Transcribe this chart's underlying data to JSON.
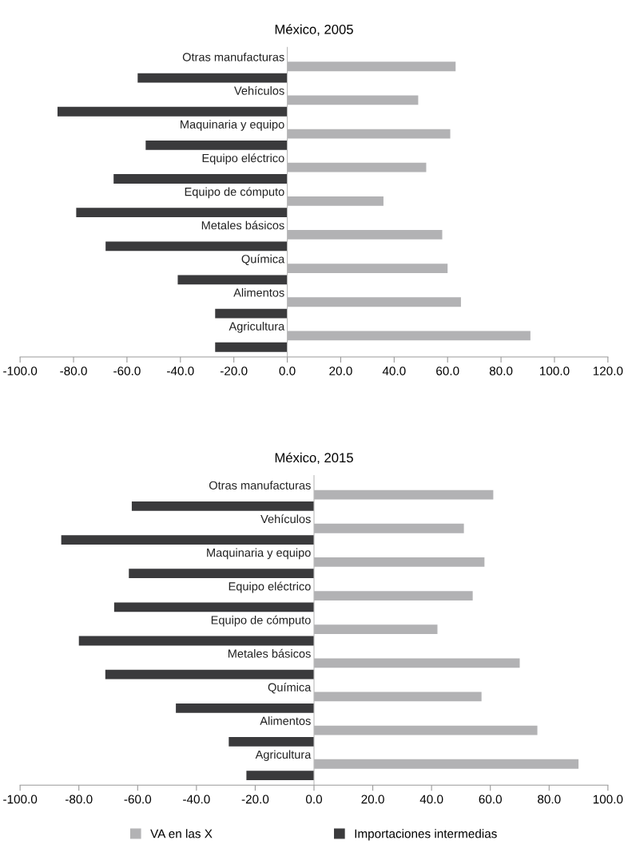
{
  "chart_data": [
    {
      "type": "bar",
      "orientation": "horizontal",
      "title": "México, 2005",
      "categories": [
        "Otras manufacturas",
        "Vehículos",
        "Maquinaria y equipo",
        "Equipo eléctrico",
        "Equipo de cómputo",
        "Metales básicos",
        "Química",
        "Alimentos",
        "Agricultura"
      ],
      "series": [
        {
          "color": "#b2b2b4",
          "values": [
            63,
            49,
            61,
            52,
            36,
            58,
            60,
            65,
            91
          ]
        },
        {
          "color": "#3a3a3c",
          "values": [
            -56,
            -86,
            -53,
            -65,
            -79,
            -68,
            -41,
            -27,
            -27
          ]
        }
      ],
      "xlim": [
        -100,
        120
      ],
      "xticks": [
        {
          "value": -100,
          "label": "-100.0"
        },
        {
          "value": -80,
          "label": "-80.0"
        },
        {
          "value": -60,
          "label": "-60.0"
        },
        {
          "value": -40,
          "label": "-40.0"
        },
        {
          "value": -20,
          "label": "-20.0"
        },
        {
          "value": 0,
          "label": "0.0"
        },
        {
          "value": 20,
          "label": "20.0"
        },
        {
          "value": 40,
          "label": "40.0"
        },
        {
          "value": 60,
          "label": "60.0"
        },
        {
          "value": 80,
          "label": "80.0"
        },
        {
          "value": 100,
          "label": "100.0"
        },
        {
          "value": 120,
          "label": "120.0"
        }
      ],
      "grid": false
    },
    {
      "type": "bar",
      "orientation": "horizontal",
      "title": "México, 2015",
      "categories": [
        "Otras manufacturas",
        "Vehículos",
        "Maquinaria y equipo",
        "Equipo eléctrico",
        "Equipo de cómputo",
        "Metales básicos",
        "Química",
        "Alimentos",
        "Agricultura"
      ],
      "series": [
        {
          "name": "VA en las X",
          "color": "#b2b2b4",
          "values": [
            61,
            51,
            58,
            54,
            42,
            70,
            57,
            76,
            90
          ]
        },
        {
          "name": "Importaciones intermedias",
          "color": "#3a3a3c",
          "values": [
            -62,
            -86,
            -63,
            -68,
            -80,
            -71,
            -47,
            -29,
            -23
          ]
        }
      ],
      "xlim": [
        -100,
        100
      ],
      "xticks": [
        {
          "value": -100,
          "label": "-100.0"
        },
        {
          "value": -80,
          "label": "-80.0"
        },
        {
          "value": -60,
          "label": "-60.0"
        },
        {
          "value": -40,
          "label": "-40.0"
        },
        {
          "value": -20,
          "label": "-20.0"
        },
        {
          "value": 0,
          "label": "0.0"
        },
        {
          "value": 20,
          "label": "20.0"
        },
        {
          "value": 40,
          "label": "40.0"
        },
        {
          "value": 60,
          "label": "60.0"
        },
        {
          "value": 80,
          "label": "80.0"
        },
        {
          "value": 100,
          "label": "100.0"
        }
      ],
      "grid": false,
      "legend": "bottom"
    }
  ]
}
